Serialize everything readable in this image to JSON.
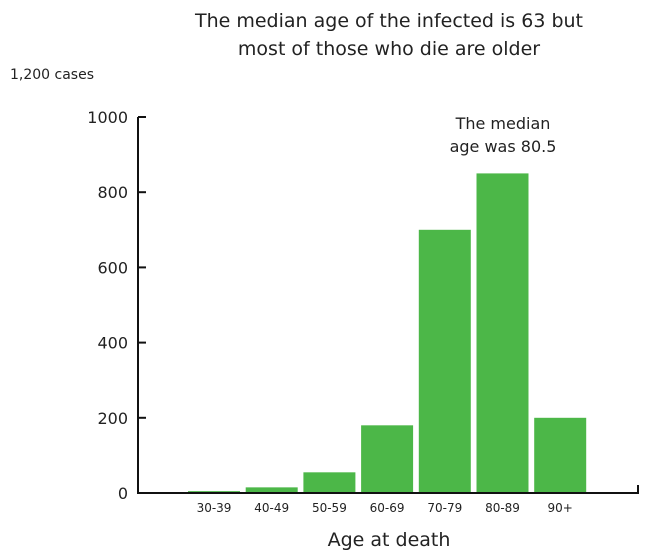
{
  "chart_data": {
    "type": "bar",
    "title_lines": [
      "The median age of the infected is 63 but",
      "most of those who die are older"
    ],
    "unit_label": "1,200 cases",
    "xlabel": "Age at death",
    "ylabel": "",
    "categories": [
      "30-39",
      "40-49",
      "50-59",
      "60-69",
      "70-79",
      "80-89",
      "90+"
    ],
    "values": [
      5,
      15,
      55,
      180,
      700,
      850,
      200
    ],
    "ylim": [
      0,
      1000
    ],
    "yticks": [
      "0",
      "200",
      "400",
      "600",
      "800",
      "1000"
    ],
    "annotation_lines": [
      "The median",
      "age was 80.5"
    ],
    "grid": false,
    "bar_color": "#4cb748"
  }
}
